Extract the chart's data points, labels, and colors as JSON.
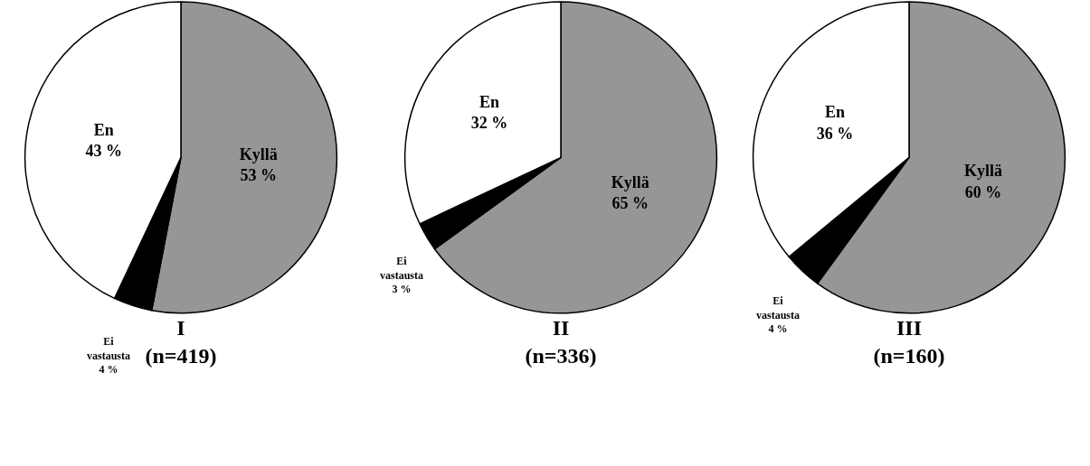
{
  "chart_data": [
    {
      "type": "pie",
      "title": "I\n(n=419)",
      "categories": [
        "Kyllä",
        "Ei vastausta",
        "En"
      ],
      "values": [
        53,
        4,
        43
      ],
      "colors": [
        "#969696",
        "#000000",
        "#ffffff"
      ],
      "value_labels": [
        "53 %",
        "4 %",
        "43 %"
      ]
    },
    {
      "type": "pie",
      "title": "II\n(n=336)",
      "categories": [
        "Kyllä",
        "Ei vastausta",
        "En"
      ],
      "values": [
        65,
        3,
        32
      ],
      "colors": [
        "#969696",
        "#000000",
        "#ffffff"
      ],
      "value_labels": [
        "65 %",
        "3 %",
        "32 %"
      ]
    },
    {
      "type": "pie",
      "title": "III\n(n=160)",
      "categories": [
        "Kyllä",
        "Ei vastausta",
        "En"
      ],
      "values": [
        60,
        4,
        36
      ],
      "colors": [
        "#969696",
        "#000000",
        "#ffffff"
      ],
      "value_labels": [
        "60 %",
        "4 %",
        "36 %"
      ]
    }
  ]
}
